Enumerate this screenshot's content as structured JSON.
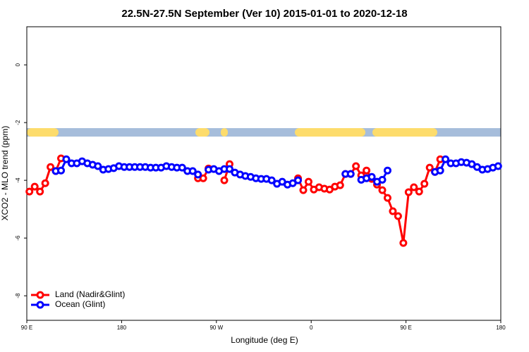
{
  "chart_data": {
    "type": "line",
    "title": "22.5N-27.5N September (Ver 10)   2015-01-01 to 2020-12-18",
    "x_label": "Longitude (deg E)",
    "y_label": "XCO2 - MLO trend (ppm)",
    "xlim": [
      90,
      540
    ],
    "ylim": [
      1.32,
      -8.85
    ],
    "xticks": [
      {
        "value": 90,
        "label": "90 E"
      },
      180,
      {
        "value": 270,
        "label": "90 W"
      },
      {
        "value": 360,
        "label": "0"
      },
      {
        "value": 450,
        "label": "90 E"
      },
      {
        "value": 540,
        "label": "180"
      }
    ],
    "yticks": [
      0,
      -2,
      -4,
      -6,
      -8
    ],
    "legend": "bottom-left",
    "series": [
      {
        "name": "Land (Nadir&Glint)",
        "color": "#ff0000",
        "x": [
          92.5,
          97.5,
          102.5,
          107.5,
          112.5,
          117.5,
          122.5,
          127.5,
          252.5,
          257.5,
          262.5,
          267.5,
          277.5,
          282.5,
          287.5,
          347.5,
          352.5,
          357.5,
          362.5,
          367.5,
          372.5,
          377.5,
          382.5,
          387.5,
          392.5,
          397.5,
          402.5,
          407.5,
          412.5,
          417.5,
          422.5,
          427.5,
          432.5,
          437.5,
          442.5,
          447.5,
          452.5,
          457.5,
          462.5,
          467.5,
          472.5,
          477.5,
          482.5
        ],
        "values": [
          -4.39,
          -4.22,
          -4.39,
          -4.1,
          -3.54,
          -3.68,
          -3.24,
          null,
          -3.93,
          -3.93,
          -3.59,
          null,
          -4.0,
          -3.44,
          null,
          -3.93,
          -4.34,
          -4.05,
          -4.32,
          -4.24,
          -4.29,
          -4.32,
          -4.22,
          -4.17,
          -3.78,
          -3.78,
          -3.51,
          -3.83,
          -3.66,
          -3.95,
          -4.15,
          -4.34,
          -4.61,
          -5.07,
          -5.24,
          -6.17,
          -4.41,
          -4.24,
          -4.39,
          -4.12,
          -3.56,
          -3.71,
          -3.27
        ]
      },
      {
        "name": "Ocean (Glint)",
        "color": "#0000ff",
        "x": [
          117.5,
          122.5,
          127.5,
          132.5,
          137.5,
          142.5,
          147.5,
          152.5,
          157.5,
          162.5,
          167.5,
          172.5,
          177.5,
          182.5,
          187.5,
          192.5,
          197.5,
          202.5,
          207.5,
          212.5,
          217.5,
          222.5,
          227.5,
          232.5,
          237.5,
          242.5,
          247.5,
          252.5,
          257.5,
          262.5,
          267.5,
          272.5,
          277.5,
          282.5,
          287.5,
          292.5,
          297.5,
          302.5,
          307.5,
          312.5,
          317.5,
          322.5,
          327.5,
          332.5,
          337.5,
          342.5,
          347.5,
          352.5,
          392.5,
          397.5,
          402.5,
          407.5,
          412.5,
          417.5,
          422.5,
          427.5,
          432.5,
          437.5,
          477.5,
          482.5,
          487.5,
          492.5,
          497.5,
          502.5,
          507.5,
          512.5,
          517.5,
          522.5,
          527.5,
          532.5,
          537.5
        ],
        "values": [
          -3.68,
          -3.66,
          -3.27,
          -3.41,
          -3.41,
          -3.34,
          -3.41,
          -3.46,
          -3.51,
          -3.63,
          -3.61,
          -3.58,
          -3.51,
          -3.54,
          -3.54,
          -3.54,
          -3.54,
          -3.54,
          -3.56,
          -3.56,
          -3.56,
          -3.51,
          -3.54,
          -3.56,
          -3.56,
          -3.68,
          -3.68,
          -3.8,
          null,
          -3.63,
          -3.61,
          -3.68,
          -3.61,
          -3.61,
          -3.73,
          -3.8,
          -3.85,
          -3.88,
          -3.93,
          -3.95,
          -3.95,
          -4.0,
          -4.12,
          -4.05,
          -4.15,
          -4.1,
          -4.0,
          null,
          -3.78,
          -3.78,
          null,
          -3.98,
          -3.93,
          -3.88,
          -4.05,
          -3.98,
          -3.66,
          null,
          -3.71,
          -3.66,
          -3.27,
          -3.41,
          -3.41,
          -3.37,
          -3.39,
          -3.44,
          -3.54,
          -3.63,
          -3.61,
          -3.56,
          -3.51
        ]
      }
    ]
  }
}
